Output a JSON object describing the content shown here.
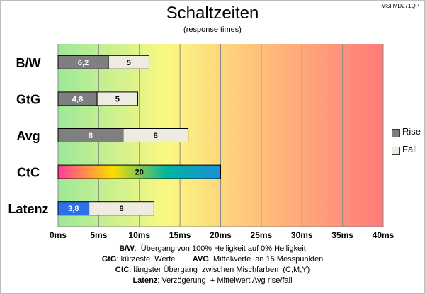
{
  "chart_data": {
    "type": "bar",
    "orientation": "horizontal",
    "stacked": true,
    "title": "Schaltzeiten",
    "subtitle": "(response times)",
    "model_label": "MSI MD271QP",
    "categories": [
      "B/W",
      "GtG",
      "Avg",
      "CtC",
      "Latenz"
    ],
    "series": [
      {
        "name": "Rise",
        "values": [
          6.2,
          4.8,
          8,
          20,
          3.8
        ],
        "labels": [
          "6,2",
          "4,8",
          "8",
          "20",
          "3,8"
        ]
      },
      {
        "name": "Fall",
        "values": [
          5,
          5,
          8,
          null,
          8
        ],
        "labels": [
          "5",
          "5",
          "8",
          "",
          "8"
        ]
      }
    ],
    "xlim": [
      0,
      40
    ],
    "x_ticks": [
      0,
      5,
      10,
      15,
      20,
      25,
      30,
      35,
      40
    ],
    "x_tick_labels": [
      "0ms",
      "5ms",
      "10ms",
      "15ms",
      "20ms",
      "25ms",
      "30ms",
      "35ms",
      "40ms"
    ],
    "grid": true,
    "legend": "right",
    "colors": {
      "rise": "#7f7f7f",
      "fall": "#eeece1",
      "latency_rise": "#2f6fe8",
      "ctc_gradient": [
        "#ff3d9a",
        "#ffdd00",
        "#00b4a0",
        "#1a8fd8"
      ],
      "background_gradient": [
        "#9de89a",
        "#fbf882",
        "#ffb77a",
        "#ff7a7a"
      ]
    }
  },
  "notes": [
    {
      "parts": [
        {
          "b": "B/W"
        },
        {
          "t": ":  Übergang von 100% Helligkeit auf 0% Helligkeit"
        }
      ]
    },
    {
      "parts": [
        {
          "b": "GtG"
        },
        {
          "t": ": kürzeste  Werte        "
        },
        {
          "b": "AVG"
        },
        {
          "t": ": Mittelwerte  an 15 Messpunkten"
        }
      ]
    },
    {
      "parts": [
        {
          "b": "CtC"
        },
        {
          "t": ": längster Übergang  zwischen Mischfarben  (C,M,Y)"
        }
      ]
    },
    {
      "parts": [
        {
          "b": "Latenz"
        },
        {
          "t": ": Verzögerung  + Mittelwert Avg rise/fall"
        }
      ]
    }
  ]
}
